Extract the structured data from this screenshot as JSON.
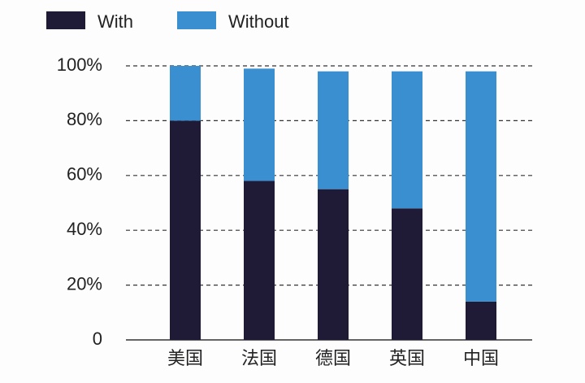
{
  "chart_data": {
    "type": "stacked_bar",
    "categories": [
      "美国",
      "法国",
      "德国",
      "英国",
      "中国"
    ],
    "series": [
      {
        "name": "With",
        "color": "#1f1b36",
        "values": [
          80,
          58,
          55,
          48,
          14
        ]
      },
      {
        "name": "Without",
        "color": "#3a8fd0",
        "values": [
          20,
          41,
          43,
          50,
          84
        ]
      }
    ],
    "ylim": [
      0,
      100
    ],
    "yticks": [
      0,
      {
        "value": 20,
        "label": "20%"
      },
      {
        "value": 40,
        "label": "40%"
      },
      {
        "value": 60,
        "label": "60%"
      },
      {
        "value": 80,
        "label": "80%"
      },
      {
        "value": 100,
        "label": "100%"
      }
    ],
    "grid": true,
    "legend": "top-left"
  }
}
